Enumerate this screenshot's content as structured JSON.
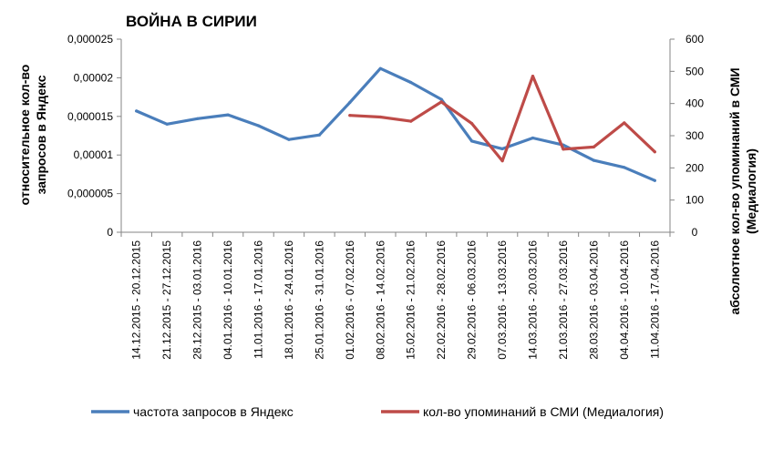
{
  "chart_data": {
    "type": "line",
    "title": "ВОЙНА В СИРИИ",
    "ylabel": "относительное кол-во\nзапросов в Яндекс",
    "y2label": "абсолютное кол-во упоминаний в СМИ\n(Медиалогия)",
    "categories": [
      "14.12.2015 - 20.12.2015",
      "21.12.2015 - 27.12.2015",
      "28.12.2015 - 03.01.2016",
      "04.01.2016 - 10.01.2016",
      "11.01.2016 - 17.01.2016",
      "18.01.2016 - 24.01.2016",
      "25.01.2016 - 31.01.2016",
      "01.02.2016 - 07.02.2016",
      "08.02.2016 - 14.02.2016",
      "15.02.2016 - 21.02.2016",
      "22.02.2016 - 28.02.2016",
      "29.02.2016 - 06.03.2016",
      "07.03.2016 - 13.03.2016",
      "14.03.2016 - 20.03.2016",
      "21.03.2016 - 27.03.2016",
      "28.03.2016 - 03.04.2016",
      "04.04.2016 - 10.04.2016",
      "11.04.2016 - 17.04.2016"
    ],
    "y_ticks": [
      "0",
      "0,000005",
      "0,00001",
      "0,000015",
      "0,00002",
      "0,000025"
    ],
    "y2_ticks": [
      "0",
      "100",
      "200",
      "300",
      "400",
      "500",
      "600"
    ],
    "ylim": [
      0,
      2.5e-05
    ],
    "y2lim": [
      0,
      600
    ],
    "series": [
      {
        "name": "частота запросов в Яндекс",
        "axis": "left",
        "color": "#4a7ebb",
        "values": [
          1.57e-05,
          1.4e-05,
          1.47e-05,
          1.52e-05,
          1.38e-05,
          1.2e-05,
          1.26e-05,
          1.68e-05,
          2.12e-05,
          1.94e-05,
          1.72e-05,
          1.18e-05,
          1.08e-05,
          1.22e-05,
          1.13e-05,
          9.3e-06,
          8.4e-06,
          6.7e-06
        ]
      },
      {
        "name": "кол-во упоминаний в СМИ (Медиалогия)",
        "axis": "right",
        "color": "#be4b48",
        "values": [
          null,
          null,
          null,
          null,
          null,
          null,
          null,
          363,
          358,
          345,
          405,
          338,
          222,
          485,
          258,
          265,
          340,
          250
        ]
      }
    ],
    "grid": false,
    "legend_position": "bottom"
  }
}
